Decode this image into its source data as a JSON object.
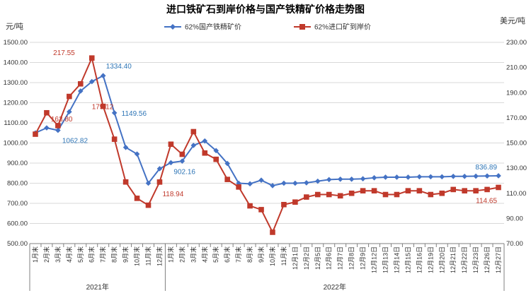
{
  "chart_data": {
    "type": "line",
    "title": "进口铁矿石到岸价格与国产铁精矿价格走势图",
    "y_left_unit": "元/吨",
    "y_right_unit": "美元/吨",
    "y_left_range": [
      500,
      1500
    ],
    "y_left_ticks": [
      "500.00",
      "600.00",
      "700.00",
      "800.00",
      "900.00",
      "1000.00",
      "1100.00",
      "1200.00",
      "1300.00",
      "1400.00",
      "1500.00"
    ],
    "y_right_range": [
      70,
      230
    ],
    "y_right_ticks": [
      "70.00",
      "90.00",
      "110.00",
      "130.00",
      "150.00",
      "170.00",
      "190.00",
      "210.00",
      "230.00"
    ],
    "categories": [
      "1月末",
      "2月末",
      "3月末",
      "4月末",
      "5月末",
      "6月末",
      "7月末",
      "8月末",
      "9月末",
      "10月末",
      "11月末",
      "12月末",
      "1月末",
      "2月末",
      "3月末",
      "4月末",
      "5月末",
      "6月末",
      "7月末",
      "8月末",
      "9月末",
      "10月末",
      "11月末",
      "12月1日",
      "12月2日",
      "12月5日",
      "12月6日",
      "12月7日",
      "12月8日",
      "12月9日",
      "12月12日",
      "12月13日",
      "12月14日",
      "12月15日",
      "12月16日",
      "12月19日",
      "12月20日",
      "12月21日",
      "12月22日",
      "12月23日",
      "12月26日",
      "12月27日"
    ],
    "year_groups": [
      {
        "label": "2021年",
        "start": 0,
        "end": 11
      },
      {
        "label": "2022年",
        "start": 12,
        "end": 41
      }
    ],
    "series": [
      {
        "name": "62%国产铁精矿价",
        "axis": "left",
        "color": "#4472c4",
        "marker": "diamond",
        "values": [
          1050,
          1075,
          1062.82,
          1155,
          1258,
          1305,
          1334.4,
          1149.56,
          978,
          945,
          800,
          872,
          902.16,
          910,
          988,
          1010,
          962,
          898,
          800,
          797,
          815,
          788,
          800,
          800,
          802,
          810,
          818,
          820,
          820,
          822,
          827,
          830,
          830,
          830,
          832,
          832,
          832,
          834,
          834,
          835,
          836,
          836.89
        ]
      },
      {
        "name": "62%进口矿到岸价",
        "axis": "right",
        "color": "#c0392b",
        "marker": "square",
        "values": [
          157,
          174,
          163.8,
          187,
          197,
          217.55,
          179.12,
          153,
          119,
          106,
          100.5,
          118.94,
          149,
          141,
          159,
          142,
          137,
          121,
          115,
          100,
          97,
          79,
          101,
          103,
          107,
          109,
          109,
          108,
          110,
          112,
          112,
          109,
          109,
          112,
          112,
          109,
          110,
          113,
          112,
          112,
          113,
          114.65
        ]
      }
    ],
    "annotations": [
      {
        "series": 0,
        "index": 2,
        "text": "1062.82"
      },
      {
        "series": 0,
        "index": 6,
        "text": "1334.40"
      },
      {
        "series": 0,
        "index": 7,
        "text": "1149.56"
      },
      {
        "series": 0,
        "index": 12,
        "text": "902.16"
      },
      {
        "series": 0,
        "index": 41,
        "text": "836.89"
      },
      {
        "series": 1,
        "index": 2,
        "text": "163.80"
      },
      {
        "series": 1,
        "index": 5,
        "text": "217.55"
      },
      {
        "series": 1,
        "index": 6,
        "text": "179.12"
      },
      {
        "series": 1,
        "index": 11,
        "text": "118.94"
      },
      {
        "series": 1,
        "index": 41,
        "text": "114.65"
      }
    ],
    "grid": "horizontal",
    "legend": "top-center"
  }
}
